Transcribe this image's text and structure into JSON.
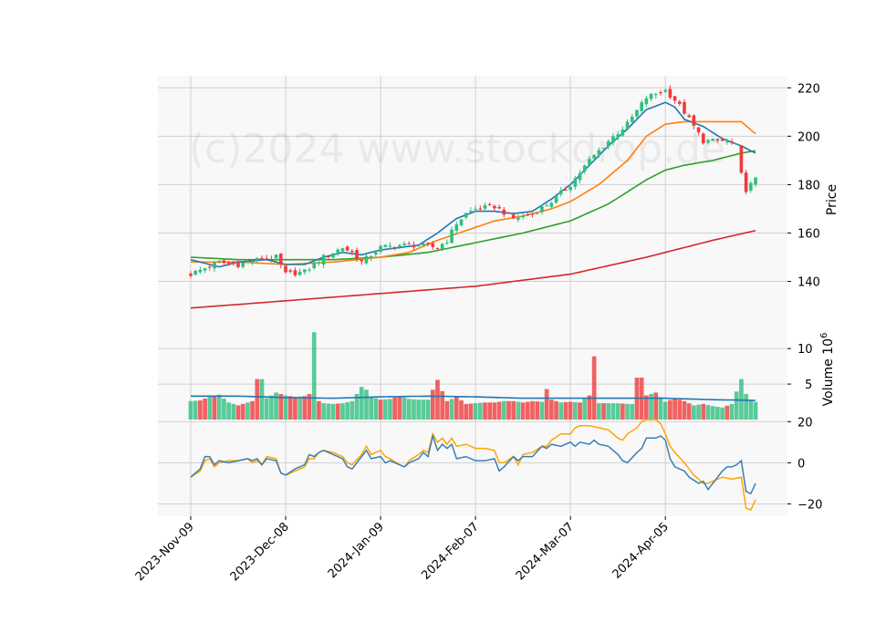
{
  "watermark": "(c)2024 www.stockdrop.de",
  "colors": {
    "panel_bg": "#f8f8f8",
    "grid": "#d0d0d0",
    "up": "#2fbf7f",
    "down": "#ef3b3b",
    "ma_blue": "#1f77b4",
    "ma_orange": "#ff7f0e",
    "ma_green": "#2ca02c",
    "ma_red": "#d62728",
    "osc_orange": "#ffa500",
    "osc_blue": "#3a7fb5"
  },
  "chart_data": {
    "type": "candlestick",
    "price_panel": {
      "ylabel": "Price",
      "ylim": [
        124,
        225
      ],
      "yticks": [
        140,
        160,
        180,
        200,
        220
      ]
    },
    "volume_panel": {
      "ylabel": "Volume  10",
      "ylabel_exponent": "6",
      "ylim": [
        0,
        14
      ],
      "yticks": [
        5,
        10
      ]
    },
    "oscillator_panel": {
      "ylim": [
        -26,
        21
      ],
      "yticks": [
        -20,
        0,
        20
      ]
    },
    "x_axis": {
      "tick_labels": [
        "2023-Nov-09",
        "2023-Dec-08",
        "2024-Jan-09",
        "2024-Feb-07",
        "2024-Mar-07",
        "2024-Apr-05"
      ],
      "tick_indices": [
        0,
        20,
        40,
        60,
        80,
        100
      ],
      "n_sessions": 120
    },
    "anchors": {
      "close": [
        [
          0,
          143
        ],
        [
          6,
          148
        ],
        [
          10,
          147
        ],
        [
          14,
          149
        ],
        [
          18,
          150
        ],
        [
          20,
          143
        ],
        [
          24,
          144
        ],
        [
          28,
          150
        ],
        [
          32,
          154
        ],
        [
          34,
          152
        ],
        [
          36,
          148
        ],
        [
          40,
          154
        ],
        [
          44,
          155
        ],
        [
          48,
          155
        ],
        [
          52,
          154
        ],
        [
          54,
          157
        ],
        [
          56,
          164
        ],
        [
          58,
          168
        ],
        [
          60,
          170
        ],
        [
          64,
          171
        ],
        [
          68,
          166
        ],
        [
          72,
          168
        ],
        [
          76,
          173
        ],
        [
          80,
          180
        ],
        [
          84,
          190
        ],
        [
          88,
          198
        ],
        [
          92,
          205
        ],
        [
          96,
          216
        ],
        [
          100,
          219
        ],
        [
          102,
          215
        ],
        [
          104,
          210
        ],
        [
          106,
          204
        ],
        [
          108,
          198
        ],
        [
          112,
          198
        ],
        [
          114,
          197
        ],
        [
          115,
          196
        ],
        [
          116,
          184
        ],
        [
          117,
          178
        ],
        [
          118,
          180
        ],
        [
          119,
          182
        ]
      ],
      "ma_blue": [
        [
          0,
          149
        ],
        [
          6,
          146
        ],
        [
          10,
          148
        ],
        [
          16,
          149
        ],
        [
          20,
          147
        ],
        [
          24,
          147
        ],
        [
          28,
          150
        ],
        [
          32,
          152
        ],
        [
          36,
          151
        ],
        [
          40,
          153
        ],
        [
          44,
          154
        ],
        [
          48,
          155
        ],
        [
          52,
          160
        ],
        [
          56,
          166
        ],
        [
          60,
          169
        ],
        [
          64,
          169
        ],
        [
          68,
          168
        ],
        [
          72,
          169
        ],
        [
          76,
          174
        ],
        [
          80,
          180
        ],
        [
          84,
          188
        ],
        [
          88,
          196
        ],
        [
          92,
          203
        ],
        [
          96,
          211
        ],
        [
          100,
          214
        ],
        [
          102,
          212
        ],
        [
          104,
          207
        ],
        [
          108,
          204
        ],
        [
          112,
          199
        ],
        [
          116,
          196
        ],
        [
          119,
          193
        ]
      ],
      "ma_orange": [
        [
          0,
          148
        ],
        [
          10,
          148
        ],
        [
          20,
          147
        ],
        [
          30,
          148
        ],
        [
          40,
          150
        ],
        [
          46,
          152
        ],
        [
          52,
          157
        ],
        [
          58,
          161
        ],
        [
          64,
          165
        ],
        [
          70,
          167
        ],
        [
          76,
          170
        ],
        [
          80,
          173
        ],
        [
          86,
          180
        ],
        [
          92,
          190
        ],
        [
          96,
          200
        ],
        [
          100,
          205
        ],
        [
          104,
          206
        ],
        [
          108,
          206
        ],
        [
          112,
          206
        ],
        [
          116,
          206
        ],
        [
          119,
          201
        ]
      ],
      "ma_green": [
        [
          0,
          150
        ],
        [
          10,
          149
        ],
        [
          20,
          149
        ],
        [
          30,
          149
        ],
        [
          40,
          150
        ],
        [
          50,
          152
        ],
        [
          60,
          156
        ],
        [
          70,
          160
        ],
        [
          80,
          165
        ],
        [
          88,
          172
        ],
        [
          96,
          182
        ],
        [
          100,
          186
        ],
        [
          104,
          188
        ],
        [
          110,
          190
        ],
        [
          116,
          193
        ],
        [
          119,
          194
        ]
      ],
      "ma_red": [
        [
          0,
          129
        ],
        [
          20,
          132
        ],
        [
          40,
          135
        ],
        [
          60,
          138
        ],
        [
          80,
          143
        ],
        [
          96,
          150
        ],
        [
          104,
          154
        ],
        [
          110,
          157
        ],
        [
          119,
          161
        ]
      ],
      "volume": [
        [
          0,
          2.6
        ],
        [
          2,
          2.7
        ],
        [
          4,
          3.2
        ],
        [
          6,
          3.5
        ],
        [
          8,
          2.4
        ],
        [
          10,
          2.0
        ],
        [
          12,
          2.4
        ],
        [
          14,
          2.8
        ],
        [
          14.5,
          5.7
        ],
        [
          16,
          3.0
        ],
        [
          18,
          3.8
        ],
        [
          20,
          3.4
        ],
        [
          22,
          3.2
        ],
        [
          24,
          3.3
        ],
        [
          25,
          3.6
        ],
        [
          26,
          12.3
        ],
        [
          27,
          2.6
        ],
        [
          28,
          2.3
        ],
        [
          30,
          2.2
        ],
        [
          32,
          2.3
        ],
        [
          34,
          2.6
        ],
        [
          36,
          4.6
        ],
        [
          37,
          4.2
        ],
        [
          38,
          3.2
        ],
        [
          40,
          2.8
        ],
        [
          42,
          2.9
        ],
        [
          44,
          3.3
        ],
        [
          46,
          2.9
        ],
        [
          48,
          2.8
        ],
        [
          50,
          2.8
        ],
        [
          52,
          5.6
        ],
        [
          53,
          4.0
        ],
        [
          54,
          2.6
        ],
        [
          56,
          3.2
        ],
        [
          58,
          2.2
        ],
        [
          60,
          2.3
        ],
        [
          62,
          2.4
        ],
        [
          64,
          2.4
        ],
        [
          66,
          2.6
        ],
        [
          68,
          2.6
        ],
        [
          70,
          2.4
        ],
        [
          72,
          2.6
        ],
        [
          74,
          2.5
        ],
        [
          75,
          4.3
        ],
        [
          76,
          2.8
        ],
        [
          78,
          2.4
        ],
        [
          80,
          2.5
        ],
        [
          82,
          2.4
        ],
        [
          84,
          3.4
        ],
        [
          85,
          8.9
        ],
        [
          86,
          2.3
        ],
        [
          88,
          2.3
        ],
        [
          90,
          2.3
        ],
        [
          92,
          2.2
        ],
        [
          94,
          2.2
        ],
        [
          94.5,
          5.9
        ],
        [
          96,
          3.4
        ],
        [
          98,
          3.8
        ],
        [
          100,
          2.5
        ],
        [
          102,
          3.0
        ],
        [
          104,
          2.6
        ],
        [
          106,
          2.0
        ],
        [
          108,
          2.2
        ],
        [
          110,
          1.9
        ],
        [
          112,
          1.7
        ],
        [
          114,
          2.2
        ],
        [
          116,
          5.7
        ],
        [
          117,
          3.6
        ],
        [
          118,
          2.7
        ],
        [
          119,
          2.5
        ]
      ],
      "volume_avg": [
        [
          0,
          3.3
        ],
        [
          10,
          3.3
        ],
        [
          20,
          3.1
        ],
        [
          30,
          3.0
        ],
        [
          40,
          3.2
        ],
        [
          50,
          3.3
        ],
        [
          60,
          3.2
        ],
        [
          70,
          3.0
        ],
        [
          80,
          3.0
        ],
        [
          90,
          3.0
        ],
        [
          100,
          3.0
        ],
        [
          110,
          2.8
        ],
        [
          119,
          2.7
        ]
      ],
      "osc_blue": [
        [
          0,
          -7
        ],
        [
          2,
          -3
        ],
        [
          3,
          3
        ],
        [
          4,
          3
        ],
        [
          5,
          -1
        ],
        [
          6,
          1
        ],
        [
          8,
          0
        ],
        [
          10,
          1
        ],
        [
          12,
          2
        ],
        [
          13,
          1
        ],
        [
          14,
          2
        ],
        [
          15,
          -1
        ],
        [
          16,
          2
        ],
        [
          18,
          1
        ],
        [
          19,
          -5
        ],
        [
          20,
          -6
        ],
        [
          22,
          -3
        ],
        [
          24,
          -1
        ],
        [
          25,
          4
        ],
        [
          26,
          3
        ],
        [
          27,
          5
        ],
        [
          28,
          6
        ],
        [
          30,
          4
        ],
        [
          32,
          2
        ],
        [
          33,
          -2
        ],
        [
          34,
          -3
        ],
        [
          36,
          3
        ],
        [
          37,
          6
        ],
        [
          38,
          2
        ],
        [
          40,
          3
        ],
        [
          41,
          0
        ],
        [
          42,
          1
        ],
        [
          44,
          -1
        ],
        [
          45,
          -2
        ],
        [
          46,
          0
        ],
        [
          48,
          2
        ],
        [
          49,
          5
        ],
        [
          50,
          3
        ],
        [
          51,
          13
        ],
        [
          52,
          6
        ],
        [
          53,
          9
        ],
        [
          54,
          7
        ],
        [
          55,
          9
        ],
        [
          56,
          2
        ],
        [
          58,
          3
        ],
        [
          60,
          1
        ],
        [
          62,
          1
        ],
        [
          64,
          2
        ],
        [
          65,
          -4
        ],
        [
          66,
          -2
        ],
        [
          68,
          3
        ],
        [
          69,
          1
        ],
        [
          70,
          3
        ],
        [
          72,
          3
        ],
        [
          74,
          8
        ],
        [
          75,
          7
        ],
        [
          76,
          9
        ],
        [
          78,
          8
        ],
        [
          80,
          10
        ],
        [
          81,
          8
        ],
        [
          82,
          10
        ],
        [
          84,
          9
        ],
        [
          85,
          11
        ],
        [
          86,
          9
        ],
        [
          88,
          8
        ],
        [
          90,
          4
        ],
        [
          91,
          1
        ],
        [
          92,
          0
        ],
        [
          94,
          5
        ],
        [
          95,
          7
        ],
        [
          96,
          12
        ],
        [
          98,
          12
        ],
        [
          99,
          13
        ],
        [
          100,
          11
        ],
        [
          101,
          2
        ],
        [
          102,
          -2
        ],
        [
          104,
          -4
        ],
        [
          105,
          -7
        ],
        [
          107,
          -10
        ],
        [
          108,
          -9
        ],
        [
          109,
          -13
        ],
        [
          110,
          -10
        ],
        [
          112,
          -4
        ],
        [
          113,
          -2
        ],
        [
          114,
          -2
        ],
        [
          115,
          -1
        ],
        [
          116,
          1
        ],
        [
          117,
          -14
        ],
        [
          118,
          -15
        ],
        [
          119,
          -10
        ]
      ],
      "osc_orange": [
        [
          0,
          -7
        ],
        [
          2,
          -4
        ],
        [
          3,
          1
        ],
        [
          4,
          2
        ],
        [
          5,
          -2
        ],
        [
          6,
          0
        ],
        [
          8,
          1
        ],
        [
          10,
          1
        ],
        [
          12,
          2
        ],
        [
          13,
          0
        ],
        [
          14,
          1
        ],
        [
          15,
          -1
        ],
        [
          16,
          3
        ],
        [
          18,
          2
        ],
        [
          19,
          -5
        ],
        [
          20,
          -6
        ],
        [
          22,
          -4
        ],
        [
          24,
          -2
        ],
        [
          25,
          2
        ],
        [
          26,
          2
        ],
        [
          27,
          5
        ],
        [
          28,
          6
        ],
        [
          30,
          5
        ],
        [
          32,
          3
        ],
        [
          33,
          0
        ],
        [
          34,
          -1
        ],
        [
          36,
          4
        ],
        [
          37,
          8
        ],
        [
          38,
          4
        ],
        [
          40,
          6
        ],
        [
          41,
          3
        ],
        [
          42,
          2
        ],
        [
          44,
          -1
        ],
        [
          45,
          -2
        ],
        [
          46,
          1
        ],
        [
          48,
          4
        ],
        [
          49,
          6
        ],
        [
          50,
          5
        ],
        [
          51,
          14
        ],
        [
          52,
          10
        ],
        [
          53,
          12
        ],
        [
          54,
          9
        ],
        [
          55,
          12
        ],
        [
          56,
          8
        ],
        [
          58,
          9
        ],
        [
          60,
          7
        ],
        [
          62,
          7
        ],
        [
          64,
          6
        ],
        [
          65,
          0
        ],
        [
          66,
          0
        ],
        [
          68,
          3
        ],
        [
          69,
          -1
        ],
        [
          70,
          4
        ],
        [
          72,
          5
        ],
        [
          74,
          8
        ],
        [
          75,
          8
        ],
        [
          76,
          11
        ],
        [
          78,
          14
        ],
        [
          80,
          14
        ],
        [
          81,
          17
        ],
        [
          82,
          18
        ],
        [
          84,
          18
        ],
        [
          86,
          17
        ],
        [
          88,
          16
        ],
        [
          90,
          12
        ],
        [
          91,
          11
        ],
        [
          92,
          14
        ],
        [
          94,
          17
        ],
        [
          95,
          20
        ],
        [
          96,
          21
        ],
        [
          98,
          21
        ],
        [
          99,
          19
        ],
        [
          100,
          14
        ],
        [
          101,
          8
        ],
        [
          102,
          5
        ],
        [
          104,
          0
        ],
        [
          106,
          -6
        ],
        [
          108,
          -10
        ],
        [
          109,
          -10
        ],
        [
          110,
          -9
        ],
        [
          112,
          -7
        ],
        [
          114,
          -8
        ],
        [
          116,
          -7
        ],
        [
          117,
          -22
        ],
        [
          118,
          -23
        ],
        [
          119,
          -18
        ]
      ]
    }
  }
}
